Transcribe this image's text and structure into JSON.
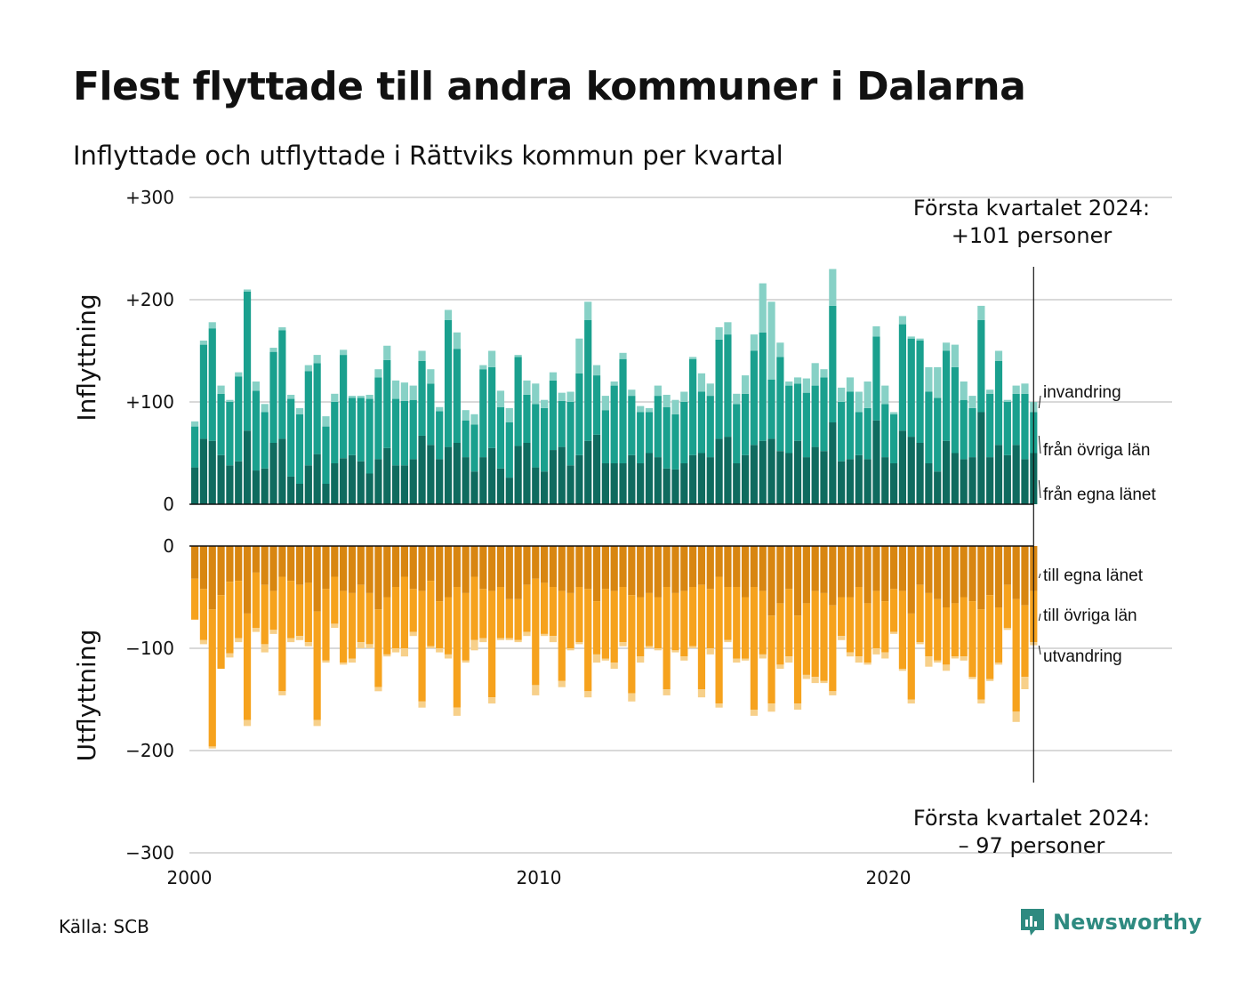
{
  "title": "Flest flyttade till andra kommuner i Dalarna",
  "subtitle": "Inflyttade och utflyttade i Rättviks kommun per kvartal",
  "source": "Källa: SCB",
  "brand": "Newsworthy",
  "colors": {
    "in_egna": "#0f6b5f",
    "in_ovriga": "#1aa08e",
    "in_invandring": "#87d1c6",
    "ut_egna": "#d88611",
    "ut_ovriga": "#f6a21d",
    "ut_utvandring": "#f7d08a",
    "grid": "#d9d9d9",
    "brand": "#2e8a80"
  },
  "annotations": {
    "top_line1": "Första kvartalet 2024:",
    "top_line2": "+101 personer",
    "bottom_line1": "Första kvartalet 2024:",
    "bottom_line2": "– 97 personer"
  },
  "chart_data": {
    "type": "bar",
    "stacked": true,
    "grid": true,
    "x_ticks": [
      "2000",
      "2010",
      "2020"
    ],
    "y_ticks_top": [
      "+300",
      "+200",
      "+100",
      "0"
    ],
    "y_ticks_bottom": [
      "0",
      "−100",
      "−200",
      "−300"
    ],
    "ylabel_top": "Inflyttning",
    "ylabel_bottom": "Utflyttning",
    "ylim_top": [
      0,
      300
    ],
    "ylim_bottom": [
      -300,
      0
    ],
    "segment_labels_in": [
      "invandring",
      "från övriga län",
      "från egna länet"
    ],
    "segment_labels_out": [
      "till egna länet",
      "till övriga län",
      "utvandring"
    ],
    "x_start": "2000 Q1",
    "x_end": "2024 Q1",
    "inflyttning": {
      "series": [
        {
          "name": "från egna länet",
          "values": [
            36,
            64,
            62,
            48,
            38,
            42,
            72,
            33,
            35,
            60,
            64,
            27,
            20,
            38,
            49,
            20,
            40,
            45,
            48,
            42,
            30,
            44,
            55,
            38,
            38,
            44,
            67,
            58,
            44,
            56,
            60,
            46,
            32,
            46,
            55,
            35,
            26,
            57,
            60,
            36,
            32,
            53,
            56,
            38,
            48,
            62,
            68,
            40,
            40,
            40,
            48,
            40,
            50,
            46,
            35,
            34,
            40,
            48,
            50,
            46,
            64,
            66,
            40,
            48,
            58,
            62,
            64,
            52,
            50,
            62,
            46,
            56,
            52,
            80,
            42,
            44,
            48,
            44,
            82,
            46,
            40,
            72,
            66,
            60,
            40,
            32,
            62,
            50,
            44,
            46,
            90,
            46,
            58,
            48,
            58,
            44,
            50
          ]
        },
        {
          "name": "från övriga län",
          "values": [
            40,
            92,
            110,
            60,
            62,
            83,
            136,
            78,
            55,
            89,
            106,
            76,
            68,
            92,
            89,
            56,
            60,
            101,
            56,
            62,
            73,
            80,
            86,
            65,
            63,
            58,
            73,
            60,
            47,
            124,
            92,
            36,
            46,
            86,
            79,
            60,
            54,
            87,
            47,
            62,
            62,
            68,
            45,
            62,
            80,
            118,
            58,
            52,
            76,
            102,
            58,
            50,
            40,
            60,
            60,
            54,
            60,
            94,
            60,
            60,
            97,
            100,
            58,
            60,
            92,
            106,
            58,
            92,
            66,
            56,
            63,
            60,
            72,
            114,
            58,
            66,
            42,
            50,
            82,
            52,
            48,
            104,
            96,
            100,
            70,
            72,
            88,
            84,
            58,
            48,
            90,
            62,
            82,
            52,
            50,
            64,
            40
          ]
        },
        {
          "name": "invandring",
          "values": [
            5,
            4,
            6,
            8,
            2,
            4,
            2,
            9,
            8,
            4,
            3,
            4,
            6,
            6,
            8,
            10,
            8,
            5,
            2,
            2,
            4,
            8,
            14,
            18,
            18,
            14,
            10,
            14,
            4,
            10,
            16,
            10,
            10,
            4,
            16,
            16,
            14,
            2,
            14,
            20,
            8,
            8,
            8,
            10,
            34,
            18,
            10,
            14,
            4,
            6,
            6,
            6,
            4,
            10,
            12,
            14,
            10,
            2,
            18,
            12,
            12,
            12,
            10,
            18,
            16,
            48,
            76,
            14,
            4,
            6,
            14,
            22,
            8,
            36,
            14,
            14,
            20,
            26,
            10,
            18,
            2,
            8,
            2,
            2,
            24,
            30,
            8,
            22,
            18,
            12,
            14,
            4,
            10,
            2,
            8,
            10,
            10
          ]
        }
      ]
    },
    "utflyttning": {
      "series": [
        {
          "name": "till egna länet",
          "values": [
            -32,
            -42,
            -62,
            -48,
            -35,
            -34,
            -66,
            -26,
            -38,
            -44,
            -30,
            -34,
            -38,
            -36,
            -64,
            -42,
            -30,
            -44,
            -46,
            -38,
            -46,
            -62,
            -50,
            -40,
            -30,
            -42,
            -44,
            -34,
            -54,
            -50,
            -40,
            -46,
            -30,
            -42,
            -44,
            -40,
            -52,
            -52,
            -38,
            -32,
            -36,
            -40,
            -44,
            -46,
            -40,
            -42,
            -54,
            -42,
            -44,
            -40,
            -48,
            -50,
            -46,
            -50,
            -40,
            -46,
            -44,
            -40,
            -38,
            -42,
            -30,
            -40,
            -40,
            -50,
            -40,
            -44,
            -68,
            -56,
            -42,
            -68,
            -56,
            -44,
            -46,
            -58,
            -50,
            -50,
            -40,
            -56,
            -44,
            -54,
            -42,
            -44,
            -66,
            -38,
            -46,
            -52,
            -60,
            -56,
            -50,
            -54,
            -62,
            -48,
            -60,
            -38,
            -52,
            -58,
            -44
          ]
        },
        {
          "name": "till övriga län",
          "values": [
            -40,
            -50,
            -134,
            -72,
            -70,
            -56,
            -104,
            -54,
            -58,
            -38,
            -112,
            -56,
            -50,
            -58,
            -106,
            -70,
            -46,
            -70,
            -64,
            -56,
            -50,
            -76,
            -56,
            -60,
            -70,
            -42,
            -108,
            -64,
            -46,
            -56,
            -118,
            -66,
            -62,
            -48,
            -104,
            -50,
            -38,
            -40,
            -46,
            -104,
            -50,
            -48,
            -88,
            -54,
            -54,
            -100,
            -52,
            -68,
            -70,
            -54,
            -96,
            -58,
            -52,
            -50,
            -100,
            -56,
            -64,
            -58,
            -102,
            -58,
            -124,
            -52,
            -70,
            -60,
            -120,
            -62,
            -86,
            -60,
            -66,
            -86,
            -70,
            -84,
            -86,
            -84,
            -38,
            -54,
            -68,
            -58,
            -56,
            -50,
            -42,
            -76,
            -84,
            -56,
            -62,
            -60,
            -56,
            -52,
            -58,
            -74,
            -88,
            -82,
            -54,
            -42,
            -110,
            -70,
            -50
          ]
        },
        {
          "name": "utvandring",
          "values": [
            0,
            -4,
            -2,
            0,
            -4,
            -4,
            -6,
            -4,
            -8,
            -4,
            -4,
            -4,
            -4,
            -4,
            -6,
            -2,
            -4,
            -2,
            -4,
            -6,
            -4,
            -4,
            -2,
            -4,
            -8,
            -4,
            -6,
            -2,
            -4,
            -4,
            -8,
            -2,
            -10,
            -4,
            -6,
            -2,
            -2,
            -2,
            -4,
            -10,
            -2,
            -6,
            -6,
            -2,
            -2,
            -6,
            -8,
            -2,
            -6,
            -4,
            -8,
            -6,
            -2,
            -2,
            -6,
            -2,
            -4,
            -2,
            -8,
            -6,
            -4,
            -2,
            -4,
            -2,
            -6,
            -4,
            -8,
            -4,
            -6,
            -6,
            -4,
            -6,
            -2,
            -4,
            -4,
            -4,
            -6,
            -2,
            -6,
            -6,
            -2,
            -2,
            -4,
            -2,
            -10,
            -2,
            -6,
            -2,
            -4,
            -2,
            -4,
            -2,
            -2,
            -2,
            -10,
            -12,
            -3
          ]
        }
      ]
    }
  }
}
